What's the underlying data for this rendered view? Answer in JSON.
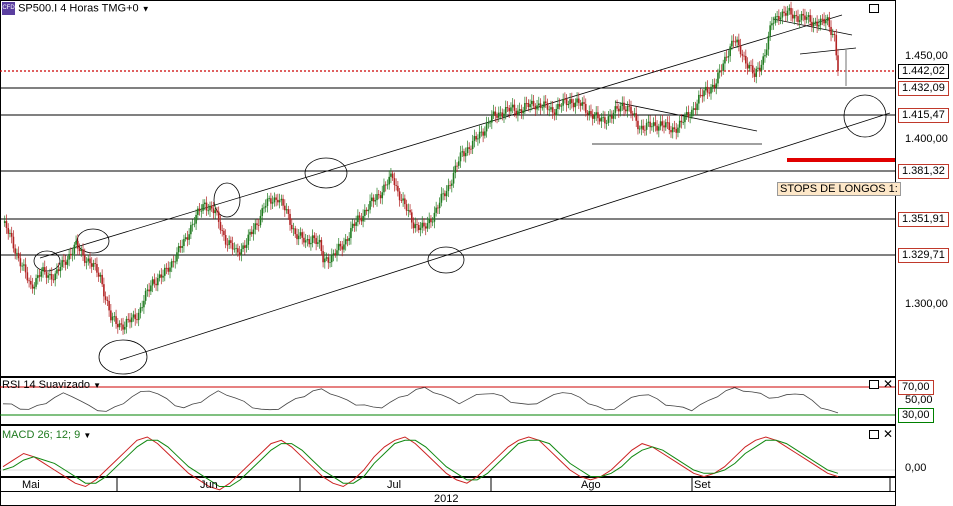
{
  "header": {
    "instrument_label": "SP500.I 4 Horas TMG+0",
    "rsi_label": "RSI 14 Suavizado",
    "macd_label": "MACD 26; 12; 9"
  },
  "annotation": {
    "stops_label": "STOPS DE LONGOS 1:"
  },
  "price_axis": {
    "ticks": [
      "1.450,00",
      "1.400,00",
      "1.300,00"
    ],
    "current_price": "1.442,02",
    "levels": [
      "1.432,09",
      "1.415,47",
      "1.381,32",
      "1.351,91",
      "1.329,71"
    ]
  },
  "rsi_axis": {
    "ticks": [
      "70,00",
      "50,00",
      "30,00"
    ]
  },
  "macd_axis": {
    "ticks": [
      "0,00"
    ]
  },
  "time_axis": {
    "months": [
      "Mai",
      "Jun",
      "Jul",
      "Ago",
      "Set"
    ],
    "year": "2012"
  },
  "colors": {
    "bull_candle": "#1f7a1f",
    "bear_candle": "#b22222",
    "current_price_line": "#cc0000",
    "stops_bar": "#e00000",
    "rsi_upper": "#cc0000",
    "rsi_lower": "#008000",
    "macd_line": "#cc2222",
    "signal_line": "#118811"
  },
  "chart_data": {
    "type": "candlestick",
    "title": "SP500.I 4 Horas TMG+0",
    "ylim": [
      1270,
      1490
    ],
    "horizontal_levels": [
      1432.09,
      1415.47,
      1381.32,
      1351.91,
      1329.71
    ],
    "current_price": 1442.02,
    "close_path": [
      [
        0,
        1350
      ],
      [
        5,
        1340
      ],
      [
        10,
        1326
      ],
      [
        16,
        1312
      ],
      [
        22,
        1320
      ],
      [
        30,
        1318
      ],
      [
        36,
        1328
      ],
      [
        42,
        1336
      ],
      [
        50,
        1326
      ],
      [
        56,
        1318
      ],
      [
        62,
        1292
      ],
      [
        70,
        1288
      ],
      [
        78,
        1296
      ],
      [
        86,
        1315
      ],
      [
        92,
        1318
      ],
      [
        98,
        1328
      ],
      [
        104,
        1338
      ],
      [
        108,
        1348
      ],
      [
        116,
        1362
      ],
      [
        122,
        1356
      ],
      [
        128,
        1340
      ],
      [
        134,
        1332
      ],
      [
        140,
        1338
      ],
      [
        146,
        1350
      ],
      [
        150,
        1360
      ],
      [
        158,
        1366
      ],
      [
        162,
        1358
      ],
      [
        168,
        1344
      ],
      [
        174,
        1338
      ],
      [
        178,
        1342
      ],
      [
        182,
        1336
      ],
      [
        184,
        1328
      ],
      [
        190,
        1330
      ],
      [
        196,
        1338
      ],
      [
        204,
        1352
      ],
      [
        212,
        1362
      ],
      [
        218,
        1370
      ],
      [
        224,
        1378
      ],
      [
        226,
        1372
      ],
      [
        230,
        1362
      ],
      [
        236,
        1350
      ],
      [
        242,
        1346
      ],
      [
        248,
        1356
      ],
      [
        256,
        1372
      ],
      [
        264,
        1392
      ],
      [
        272,
        1400
      ],
      [
        280,
        1412
      ],
      [
        288,
        1418
      ],
      [
        296,
        1418
      ],
      [
        306,
        1422
      ],
      [
        316,
        1418
      ],
      [
        326,
        1424
      ],
      [
        334,
        1420
      ],
      [
        342,
        1412
      ],
      [
        350,
        1414
      ],
      [
        356,
        1422
      ],
      [
        360,
        1418
      ],
      [
        366,
        1408
      ],
      [
        372,
        1408
      ],
      [
        378,
        1410
      ],
      [
        384,
        1406
      ],
      [
        390,
        1410
      ],
      [
        396,
        1418
      ],
      [
        400,
        1424
      ],
      [
        404,
        1430
      ],
      [
        410,
        1434
      ],
      [
        416,
        1452
      ],
      [
        420,
        1460
      ],
      [
        424,
        1454
      ],
      [
        428,
        1446
      ],
      [
        432,
        1438
      ],
      [
        438,
        1452
      ],
      [
        442,
        1470
      ],
      [
        446,
        1476
      ],
      [
        452,
        1476
      ],
      [
        458,
        1474
      ],
      [
        464,
        1472
      ],
      [
        470,
        1470
      ],
      [
        474,
        1472
      ],
      [
        478,
        1462
      ],
      [
        480,
        1442
      ]
    ],
    "rsi": {
      "period": 14,
      "levels": [
        70,
        50,
        30
      ],
      "values": [
        46,
        44,
        40,
        38,
        42,
        48,
        55,
        60,
        58,
        50,
        42,
        38,
        35,
        40,
        48,
        56,
        62,
        66,
        60,
        52,
        45,
        40,
        44,
        50,
        57,
        63,
        60,
        54,
        48,
        42,
        38,
        36,
        40,
        46,
        52,
        58,
        64,
        66,
        62,
        56,
        50,
        46,
        44,
        40,
        42,
        48,
        54,
        60,
        66,
        68,
        64,
        58,
        52,
        48,
        52,
        58,
        62,
        60,
        56,
        50,
        46,
        44,
        48,
        52,
        58,
        64,
        60,
        54,
        48,
        42,
        36,
        40,
        46,
        54,
        60,
        58,
        52,
        46,
        42,
        40,
        38,
        44,
        50,
        58,
        64,
        68,
        66,
        62,
        60,
        56,
        54,
        58,
        62,
        58,
        50,
        42,
        36,
        32
      ]
    },
    "macd": {
      "params": [
        26,
        12,
        9
      ],
      "macd_values": [
        0.1,
        0.3,
        0.5,
        0.4,
        0.2,
        0,
        -0.2,
        -0.4,
        -0.5,
        -0.3,
        0,
        0.3,
        0.6,
        0.9,
        1,
        0.8,
        0.5,
        0.2,
        -0.1,
        -0.3,
        -0.5,
        -0.6,
        -0.4,
        -0.1,
        0.2,
        0.5,
        0.8,
        0.9,
        0.7,
        0.4,
        0.1,
        -0.2,
        -0.4,
        -0.5,
        -0.3,
        0,
        0.4,
        0.7,
        0.9,
        1,
        0.8,
        0.5,
        0.2,
        -0.1,
        -0.3,
        -0.4,
        -0.2,
        0.1,
        0.4,
        0.7,
        0.9,
        1,
        0.9,
        0.6,
        0.3,
        0,
        -0.2,
        -0.3,
        -0.2,
        0,
        0.3,
        0.6,
        0.8,
        0.7,
        0.5,
        0.3,
        0.1,
        -0.1,
        -0.2,
        -0.1,
        0.1,
        0.4,
        0.7,
        0.9,
        1,
        0.9,
        0.7,
        0.5,
        0.3,
        0.1,
        -0.1,
        -0.2
      ],
      "signal_values": [
        0,
        0.1,
        0.3,
        0.4,
        0.3,
        0.2,
        0,
        -0.2,
        -0.4,
        -0.4,
        -0.2,
        0.1,
        0.4,
        0.7,
        0.9,
        0.9,
        0.7,
        0.4,
        0.1,
        -0.1,
        -0.3,
        -0.5,
        -0.5,
        -0.3,
        0,
        0.3,
        0.6,
        0.8,
        0.8,
        0.6,
        0.3,
        0,
        -0.2,
        -0.4,
        -0.4,
        -0.2,
        0.2,
        0.5,
        0.8,
        0.9,
        0.9,
        0.7,
        0.4,
        0.1,
        -0.1,
        -0.3,
        -0.3,
        -0.1,
        0.2,
        0.5,
        0.8,
        0.9,
        0.9,
        0.8,
        0.5,
        0.2,
        0,
        -0.2,
        -0.2,
        -0.1,
        0.1,
        0.4,
        0.6,
        0.7,
        0.6,
        0.4,
        0.2,
        0,
        -0.1,
        -0.1,
        0,
        0.2,
        0.5,
        0.7,
        0.9,
        0.9,
        0.8,
        0.6,
        0.4,
        0.2,
        0,
        -0.1
      ]
    }
  }
}
